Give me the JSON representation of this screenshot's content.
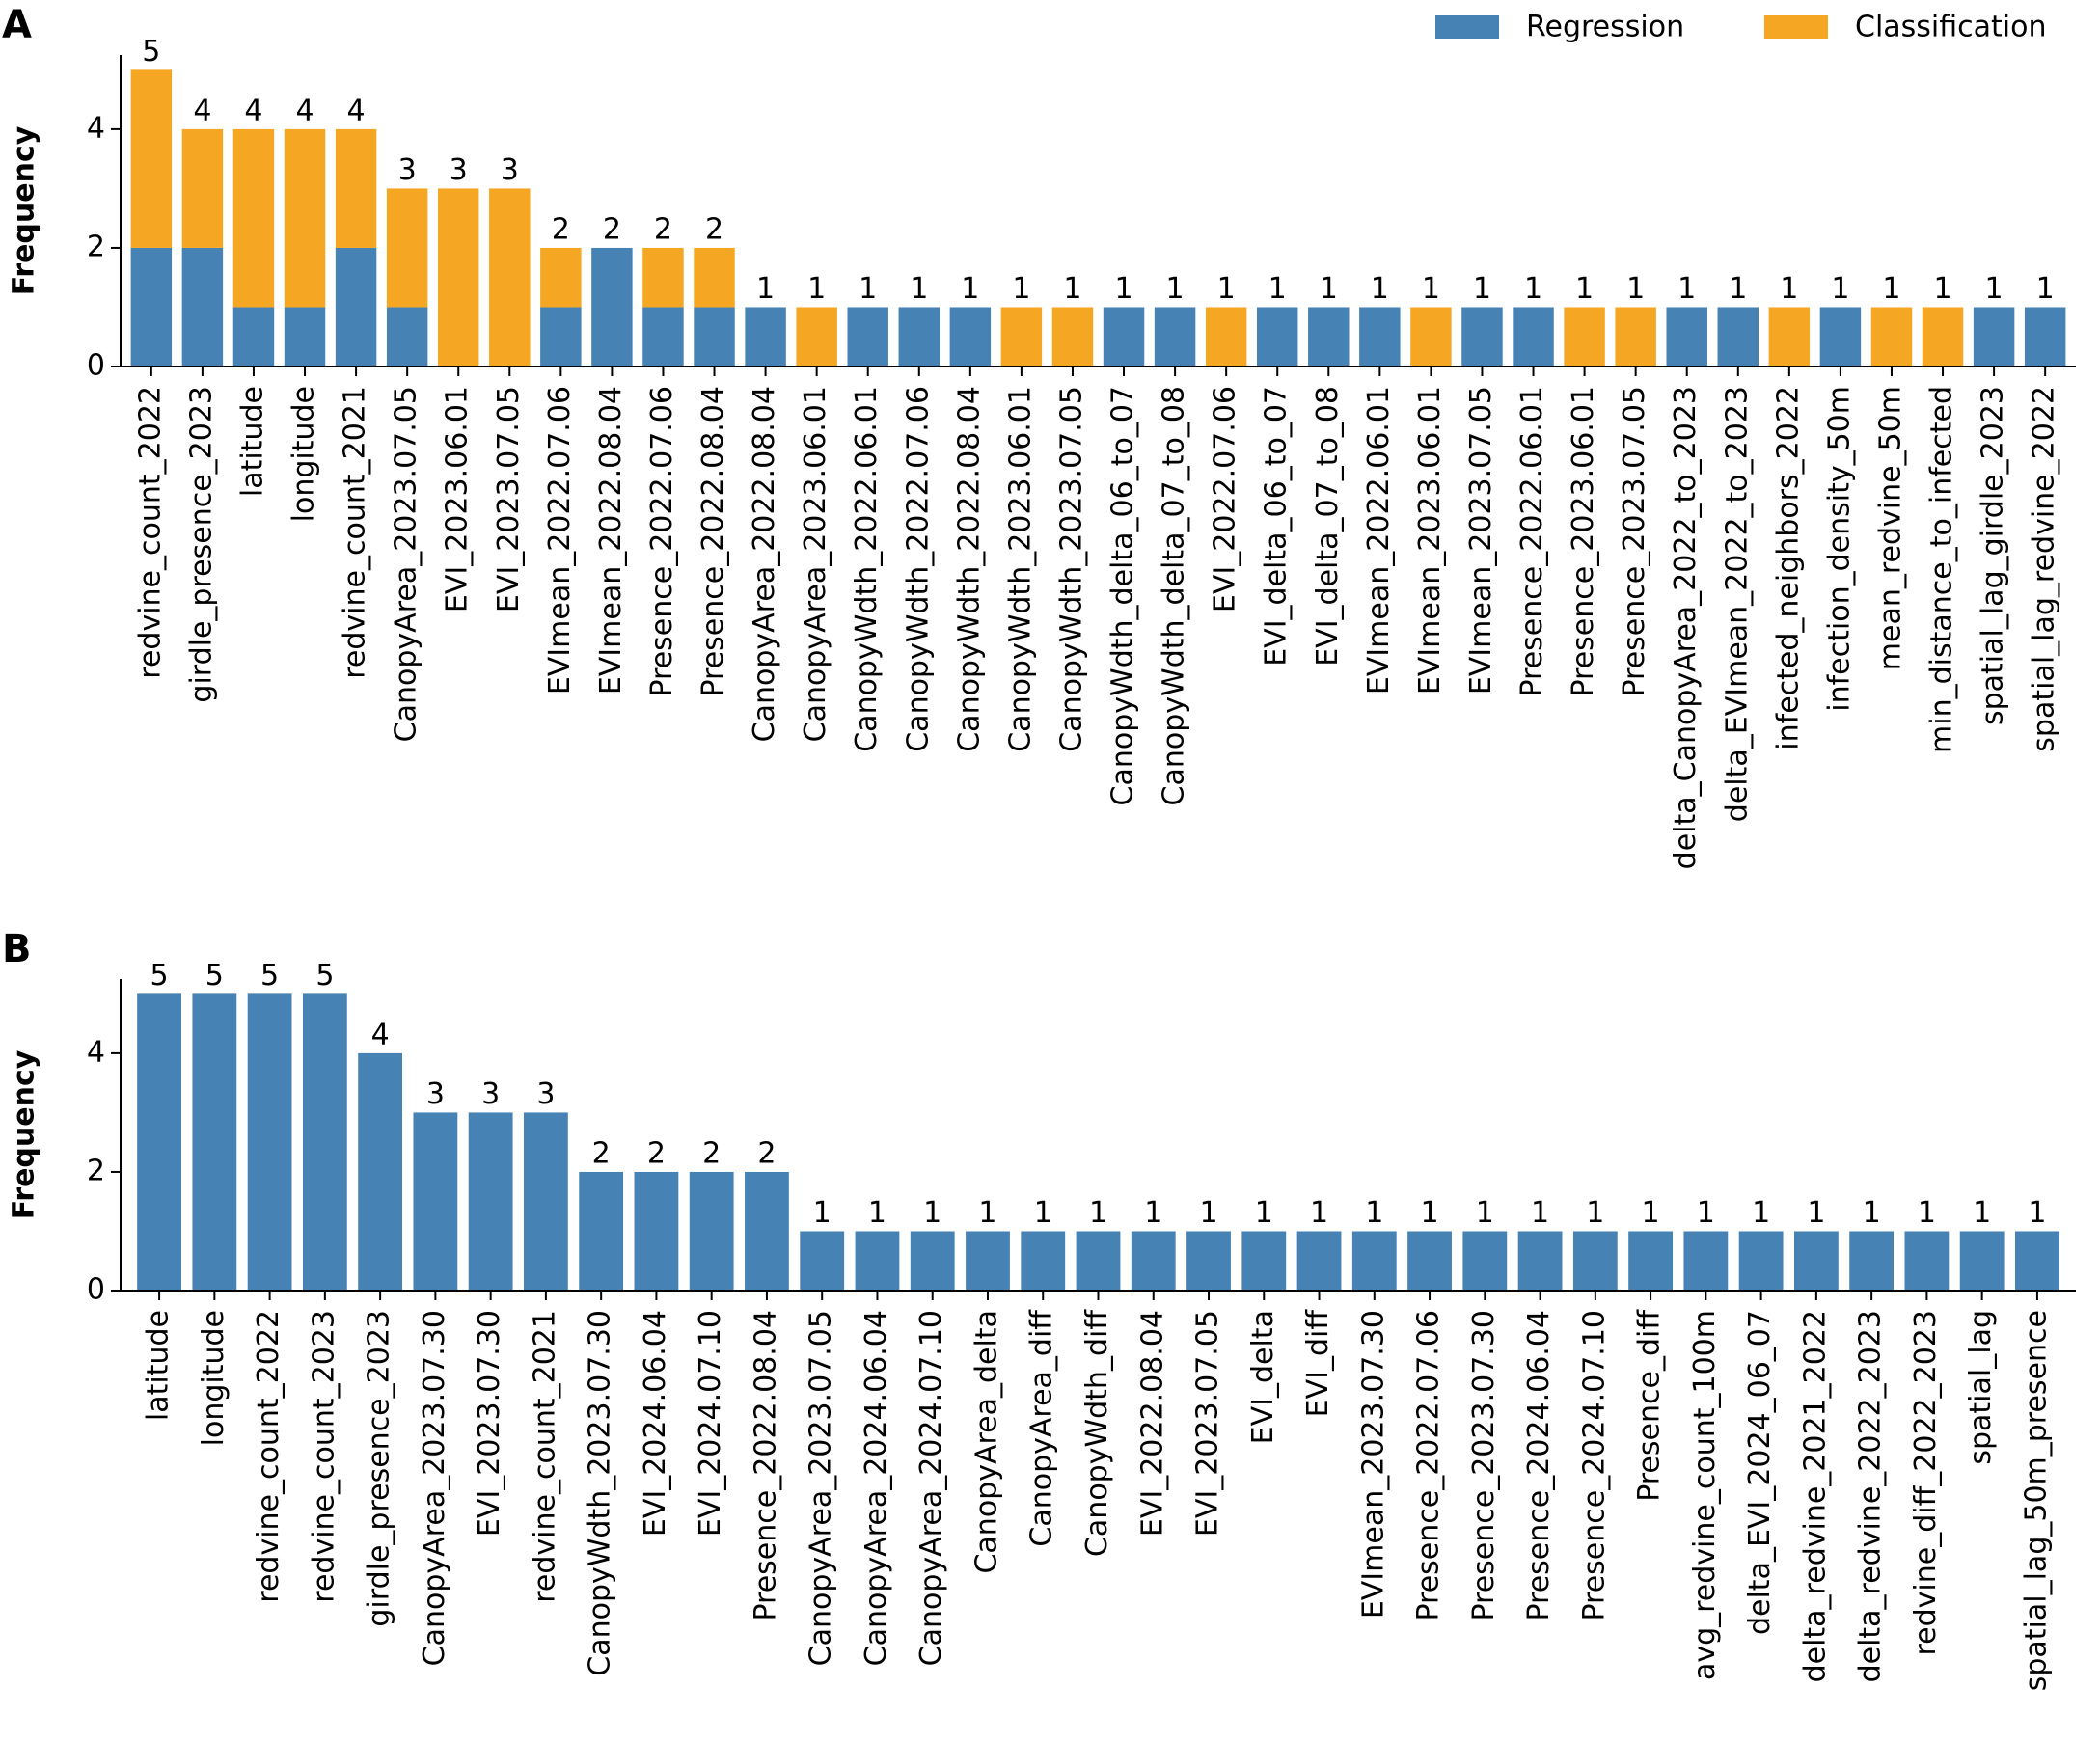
{
  "chart_data": [
    {
      "type": "stacked_bar",
      "panel": "A",
      "ylabel": "Frequency",
      "categories": [
        "redvine_count_2022",
        "girdle_presence_2023",
        "latitude",
        "longitude",
        "redvine_count_2021",
        "CanopyArea_2023.07.05",
        "EVI_2023.06.01",
        "EVI_2023.07.05",
        "EVImean_2022.07.06",
        "EVImean_2022.08.04",
        "Presence_2022.07.06",
        "Presence_2022.08.04",
        "CanopyArea_2022.08.04",
        "CanopyArea_2023.06.01",
        "CanopyWdth_2022.06.01",
        "CanopyWdth_2022.07.06",
        "CanopyWdth_2022.08.04",
        "CanopyWdth_2023.06.01",
        "CanopyWdth_2023.07.05",
        "CanopyWdth_delta_06_to_07",
        "CanopyWdth_delta_07_to_08",
        "EVI_2022.07.06",
        "EVI_delta_06_to_07",
        "EVI_delta_07_to_08",
        "EVImean_2022.06.01",
        "EVImean_2023.06.01",
        "EVImean_2023.07.05",
        "Presence_2022.06.01",
        "Presence_2023.06.01",
        "Presence_2023.07.05",
        "delta_CanopyArea_2022_to_2023",
        "delta_EVImean_2022_to_2023",
        "infected_neighbors_2022",
        "infection_density_50m",
        "mean_redvine_50m",
        "min_distance_to_infected",
        "spatial_lag_girdle_2023",
        "spatial_lag_redvine_2022"
      ],
      "series": [
        {
          "name": "Regression",
          "color": "#4682b4",
          "values": [
            2,
            2,
            1,
            1,
            2,
            1,
            0,
            0,
            1,
            2,
            1,
            1,
            1,
            0,
            1,
            1,
            1,
            0,
            0,
            1,
            1,
            0,
            1,
            1,
            1,
            0,
            1,
            1,
            0,
            0,
            1,
            1,
            0,
            1,
            0,
            0,
            1,
            1
          ]
        },
        {
          "name": "Classification",
          "color": "#f5a623",
          "values": [
            3,
            2,
            3,
            3,
            2,
            2,
            3,
            3,
            1,
            0,
            1,
            1,
            0,
            1,
            0,
            0,
            0,
            1,
            1,
            0,
            0,
            1,
            0,
            0,
            0,
            1,
            0,
            0,
            1,
            1,
            0,
            0,
            1,
            0,
            1,
            1,
            0,
            0
          ]
        }
      ],
      "totals": [
        5,
        4,
        4,
        4,
        4,
        3,
        3,
        3,
        2,
        2,
        2,
        2,
        1,
        1,
        1,
        1,
        1,
        1,
        1,
        1,
        1,
        1,
        1,
        1,
        1,
        1,
        1,
        1,
        1,
        1,
        1,
        1,
        1,
        1,
        1,
        1,
        1,
        1
      ],
      "ylim": [
        0,
        5.25
      ],
      "yticks": [
        0,
        2,
        4
      ],
      "grid": false,
      "legend": "upper right"
    },
    {
      "type": "bar",
      "panel": "B",
      "ylabel": "Frequency",
      "color": "#4682b4",
      "categories": [
        "latitude",
        "longitude",
        "redvine_count_2022",
        "redvine_count_2023",
        "girdle_presence_2023",
        "CanopyArea_2023.07.30",
        "EVI_2023.07.30",
        "redvine_count_2021",
        "CanopyWdth_2023.07.30",
        "EVI_2024.06.04",
        "EVI_2024.07.10",
        "Presence_2022.08.04",
        "CanopyArea_2023.07.05",
        "CanopyArea_2024.06.04",
        "CanopyArea_2024.07.10",
        "CanopyArea_delta",
        "CanopyArea_diff",
        "CanopyWdth_diff",
        "EVI_2022.08.04",
        "EVI_2023.07.05",
        "EVI_delta",
        "EVI_diff",
        "EVImean_2023.07.30",
        "Presence_2022.07.06",
        "Presence_2023.07.30",
        "Presence_2024.06.04",
        "Presence_2024.07.10",
        "Presence_diff",
        "avg_redvine_count_100m",
        "delta_EVI_2024_06_07",
        "delta_redvine_2021_2022",
        "delta_redvine_2022_2023",
        "redvine_diff_2022_2023",
        "spatial_lag",
        "spatial_lag_50m_presence"
      ],
      "values": [
        5,
        5,
        5,
        5,
        4,
        3,
        3,
        3,
        2,
        2,
        2,
        2,
        1,
        1,
        1,
        1,
        1,
        1,
        1,
        1,
        1,
        1,
        1,
        1,
        1,
        1,
        1,
        1,
        1,
        1,
        1,
        1,
        1,
        1,
        1
      ],
      "ylim": [
        0,
        5.25
      ],
      "yticks": [
        0,
        2,
        4
      ],
      "grid": false
    }
  ]
}
